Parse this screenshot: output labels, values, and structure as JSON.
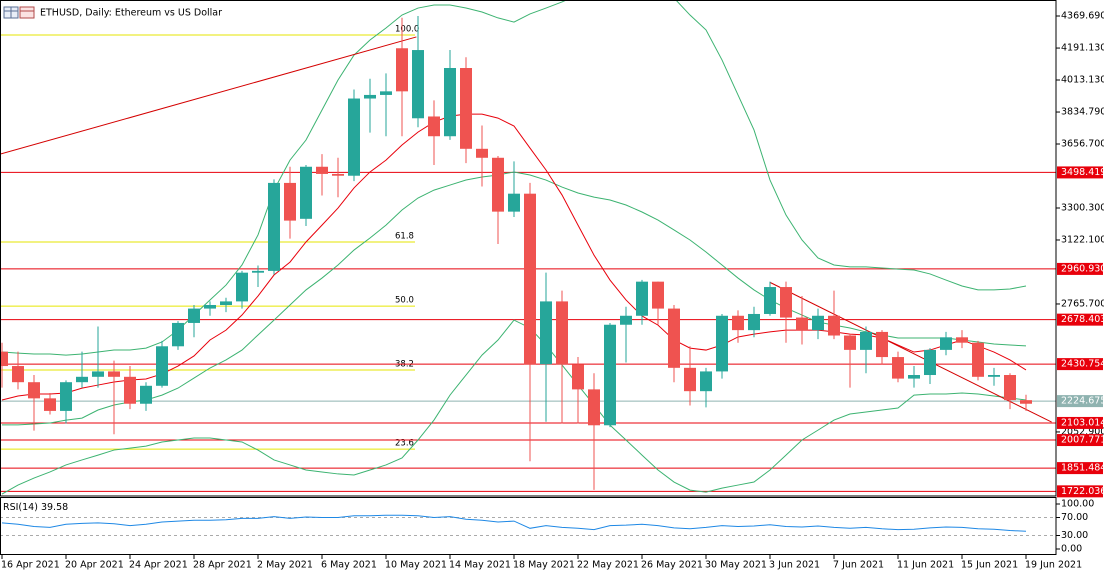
{
  "chart_data": {
    "type": "candlestick",
    "title": "ETHUSD, Daily:  Ethereum vs US Dollar",
    "categories": [
      "16 Apr 2021",
      null,
      null,
      null,
      "20 Apr 2021",
      null,
      null,
      null,
      "24 Apr 2021",
      null,
      null,
      null,
      "28 Apr 2021",
      null,
      null,
      null,
      "2 May 2021",
      null,
      null,
      null,
      "6 May 2021",
      null,
      null,
      null,
      "10 May 2021",
      null,
      null,
      null,
      "14 May 2021",
      null,
      null,
      null,
      "18 May 2021",
      null,
      null,
      null,
      "22 May 2021",
      null,
      null,
      null,
      "26 May 2021",
      null,
      null,
      null,
      "30 May 2021",
      null,
      null,
      null,
      "3 Jun 2021",
      null,
      null,
      null,
      "7 Jun 2021",
      null,
      null,
      null,
      "11 Jun 2021",
      null,
      null,
      null,
      "15 Jun 2021",
      null,
      null,
      null,
      "19 Jun 2021"
    ],
    "open": [
      2500,
      2420,
      2330,
      2240,
      2170,
      2330,
      2360,
      2390,
      2360,
      2210,
      2310,
      2530,
      2660,
      2740,
      2760,
      2780,
      2940,
      2950,
      3440,
      3240,
      3530,
      3490,
      3480,
      3910,
      3930,
      4190,
      3800,
      3810,
      3700,
      4080,
      3630,
      3580,
      3280,
      3380,
      2430,
      2780,
      2430,
      2290,
      2090,
      2650,
      2700,
      2890,
      2740,
      2410,
      2280,
      2390,
      2700,
      2620,
      2710,
      2860,
      2690,
      2620,
      2700,
      2590,
      2510,
      2610,
      2470,
      2350,
      2370,
      2510,
      2580,
      2550,
      2360,
      2370,
      2230
    ],
    "high": [
      2550,
      2500,
      2370,
      2270,
      2340,
      2500,
      2640,
      2450,
      2420,
      2330,
      2560,
      2670,
      2760,
      2780,
      2800,
      2950,
      2980,
      3460,
      3530,
      3540,
      3600,
      3580,
      3960,
      4020,
      4050,
      4360,
      4370,
      3900,
      4180,
      4140,
      3760,
      3590,
      3560,
      3440,
      2940,
      2840,
      2470,
      2380,
      2660,
      2750,
      2900,
      2890,
      2760,
      2530,
      2410,
      2710,
      2730,
      2750,
      2890,
      2890,
      2810,
      2740,
      2840,
      2600,
      2640,
      2620,
      2500,
      2420,
      2520,
      2610,
      2620,
      2560,
      2410,
      2380,
      2260
    ],
    "low": [
      2300,
      2290,
      2060,
      2150,
      2100,
      2300,
      2300,
      2040,
      2180,
      2170,
      2300,
      2510,
      2580,
      2700,
      2720,
      2740,
      2860,
      2930,
      3130,
      3200,
      3370,
      3360,
      3450,
      3720,
      3700,
      3700,
      3750,
      3540,
      3680,
      3550,
      3420,
      3100,
      3250,
      1890,
      2110,
      2100,
      2100,
      1730,
      2080,
      2440,
      2650,
      2650,
      2330,
      2200,
      2190,
      2350,
      2550,
      2580,
      2700,
      2550,
      2540,
      2570,
      2570,
      2300,
      2380,
      2430,
      2330,
      2300,
      2320,
      2480,
      2520,
      2340,
      2310,
      2180,
      2170
    ],
    "close": [
      2420,
      2330,
      2240,
      2170,
      2330,
      2360,
      2390,
      2360,
      2210,
      2310,
      2530,
      2660,
      2740,
      2760,
      2780,
      2940,
      2950,
      3440,
      3230,
      3530,
      3490,
      3480,
      3910,
      3930,
      3950,
      3950,
      4180,
      3700,
      4080,
      3630,
      3580,
      3280,
      3380,
      2430,
      2780,
      2430,
      2290,
      2090,
      2650,
      2700,
      2890,
      2740,
      2410,
      2280,
      2390,
      2700,
      2620,
      2710,
      2860,
      2690,
      2620,
      2700,
      2590,
      2510,
      2610,
      2470,
      2350,
      2370,
      2510,
      2580,
      2550,
      2360,
      2370,
      2230,
      2210
    ],
    "bull_color": "#26a69a",
    "bear_color": "#ef5350",
    "ylim": [
      1696.1,
      4458.8
    ],
    "yticks": [
      {
        "value": 4369.69,
        "label": "4369.690"
      },
      {
        "value": 4191.13,
        "label": "4191.130"
      },
      {
        "value": 4013.13,
        "label": "4013.130"
      },
      {
        "value": 3834.79,
        "label": "3834.790"
      },
      {
        "value": 3656.7,
        "label": "3656.700"
      },
      {
        "value": 3300.3,
        "label": "3300.300"
      },
      {
        "value": 3122.1,
        "label": "3122.100"
      },
      {
        "value": 2765.7,
        "label": "2765.700"
      },
      {
        "value": 2052.9,
        "label": "2052.900"
      }
    ],
    "grid": false,
    "levels": [
      3498.419,
      2960.93,
      2678.403,
      2430.754,
      2103.014,
      2007.771,
      1851.484,
      1722.036
    ],
    "level_labels": [
      "3498.419",
      "2960.930",
      "2678.403",
      "2430.754",
      "2103.014",
      "2007.771",
      "1851.484",
      "1722.036"
    ],
    "level_color": "#e8000b",
    "current_price": 2224.675,
    "current_color": "#8fb3b0",
    "fibonacci": [
      {
        "value": 4264,
        "label": "100.0"
      },
      {
        "value": 3111,
        "label": "61.8"
      },
      {
        "value": 2754,
        "label": "50.0"
      },
      {
        "value": 2398,
        "label": "38.2"
      },
      {
        "value": 1957,
        "label": "23.6"
      }
    ],
    "fib_color": "#e6e600",
    "bands": {
      "upper": [
        2498,
        2492,
        2487,
        2487,
        2481,
        2487,
        2498,
        2509,
        2509,
        2520,
        2554,
        2620,
        2704,
        2788,
        2871,
        2983,
        3150,
        3400,
        3567,
        3679,
        3846,
        4013,
        4152,
        4236,
        4303,
        4375,
        4414,
        4431,
        4431,
        4414,
        4392,
        4359,
        4336,
        4381,
        4414,
        4448,
        4487,
        4515,
        4542,
        4542,
        4526,
        4504,
        4470,
        4375,
        4292,
        4125,
        3930,
        3735,
        3456,
        3261,
        3122,
        3022,
        2983,
        2972,
        2972,
        2966,
        2960,
        2955,
        2933,
        2899,
        2866,
        2844,
        2844,
        2849,
        2866
      ],
      "middle": [
        2092,
        2092,
        2097,
        2103,
        2119,
        2130,
        2175,
        2203,
        2220,
        2231,
        2258,
        2297,
        2353,
        2409,
        2454,
        2509,
        2593,
        2676,
        2760,
        2844,
        2910,
        2983,
        3066,
        3133,
        3205,
        3289,
        3356,
        3400,
        3428,
        3456,
        3473,
        3484,
        3501,
        3484,
        3456,
        3417,
        3384,
        3361,
        3345,
        3317,
        3278,
        3233,
        3178,
        3122,
        3055,
        2983,
        2910,
        2844,
        2788,
        2743,
        2704,
        2665,
        2648,
        2632,
        2610,
        2593,
        2576,
        2576,
        2576,
        2576,
        2565,
        2554,
        2543,
        2537,
        2532
      ],
      "lower": [
        1707,
        1757,
        1796,
        1830,
        1869,
        1897,
        1924,
        1952,
        1963,
        1974,
        1997,
        2008,
        2019,
        2019,
        2008,
        1997,
        1952,
        1897,
        1869,
        1841,
        1830,
        1819,
        1813,
        1841,
        1869,
        1908,
        2008,
        2119,
        2258,
        2370,
        2481,
        2565,
        2676,
        2632,
        2537,
        2426,
        2314,
        2203,
        2091,
        2008,
        1924,
        1841,
        1774,
        1729,
        1718,
        1740,
        1757,
        1774,
        1841,
        1924,
        2008,
        2063,
        2119,
        2153,
        2164,
        2175,
        2186,
        2258,
        2264,
        2264,
        2270,
        2264,
        2253,
        2242,
        2231
      ]
    },
    "band_color": "#3cb371",
    "ma": [
      2231,
      2253,
      2264,
      2264,
      2270,
      2297,
      2314,
      2331,
      2342,
      2348,
      2376,
      2420,
      2476,
      2565,
      2620,
      2704,
      2810,
      2927,
      2999,
      3111,
      3205,
      3300,
      3412,
      3501,
      3567,
      3651,
      3723,
      3779,
      3812,
      3823,
      3823,
      3801,
      3757,
      3634,
      3512,
      3373,
      3205,
      3038,
      2899,
      2788,
      2699,
      2648,
      2565,
      2520,
      2509,
      2537,
      2582,
      2598,
      2610,
      2620,
      2620,
      2620,
      2610,
      2598,
      2593,
      2576,
      2537,
      2498,
      2509,
      2537,
      2565,
      2532,
      2498,
      2454,
      2398
    ],
    "ma_color": "#e8000b",
    "trendlines": [
      {
        "x": [
          -0.125,
          25.9
        ],
        "y": [
          3600,
          4253
        ]
      },
      {
        "x": [
          48,
          65.6
        ],
        "y": [
          2886,
          2108
        ]
      }
    ],
    "trend_color": "#d40000",
    "rsi": {
      "name": "RSI(14)",
      "values": [
        58,
        55,
        50,
        48,
        55,
        57,
        58,
        56,
        52,
        55,
        60,
        62,
        64,
        64,
        65,
        68,
        68,
        72,
        68,
        71,
        70,
        70,
        74,
        74,
        75,
        75,
        74,
        70,
        72,
        66,
        64,
        60,
        62,
        46,
        52,
        48,
        46,
        43,
        52,
        53,
        55,
        52,
        47,
        45,
        48,
        52,
        50,
        51,
        54,
        50,
        49,
        51,
        48,
        46,
        48,
        45,
        43,
        44,
        47,
        49,
        48,
        45,
        44,
        41,
        39.58
      ],
      "color": "#1e88e5",
      "ylim": [
        0,
        100
      ],
      "yticks": [
        {
          "value": 100,
          "label": "100.00"
        },
        {
          "value": 70,
          "label": "70.00"
        },
        {
          "value": 30,
          "label": "30.00"
        },
        {
          "value": 0,
          "label": "0.00"
        }
      ]
    }
  }
}
